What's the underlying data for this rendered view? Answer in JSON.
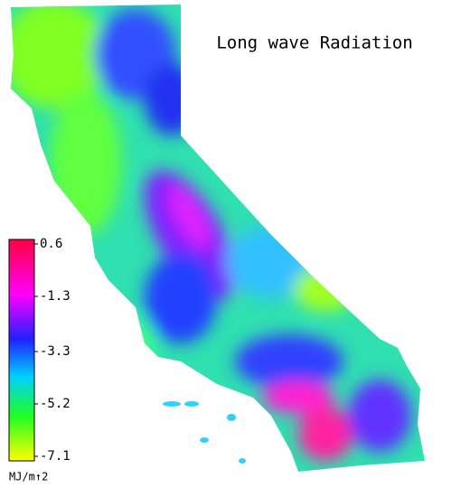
{
  "title": "Long wave Radiation",
  "colorbar": {
    "range": [
      -7.1,
      0.6
    ],
    "ticks": [
      0.6,
      -1.3,
      -3.3,
      -5.2,
      -7.1
    ],
    "unit": "MJ/m↑2"
  }
}
